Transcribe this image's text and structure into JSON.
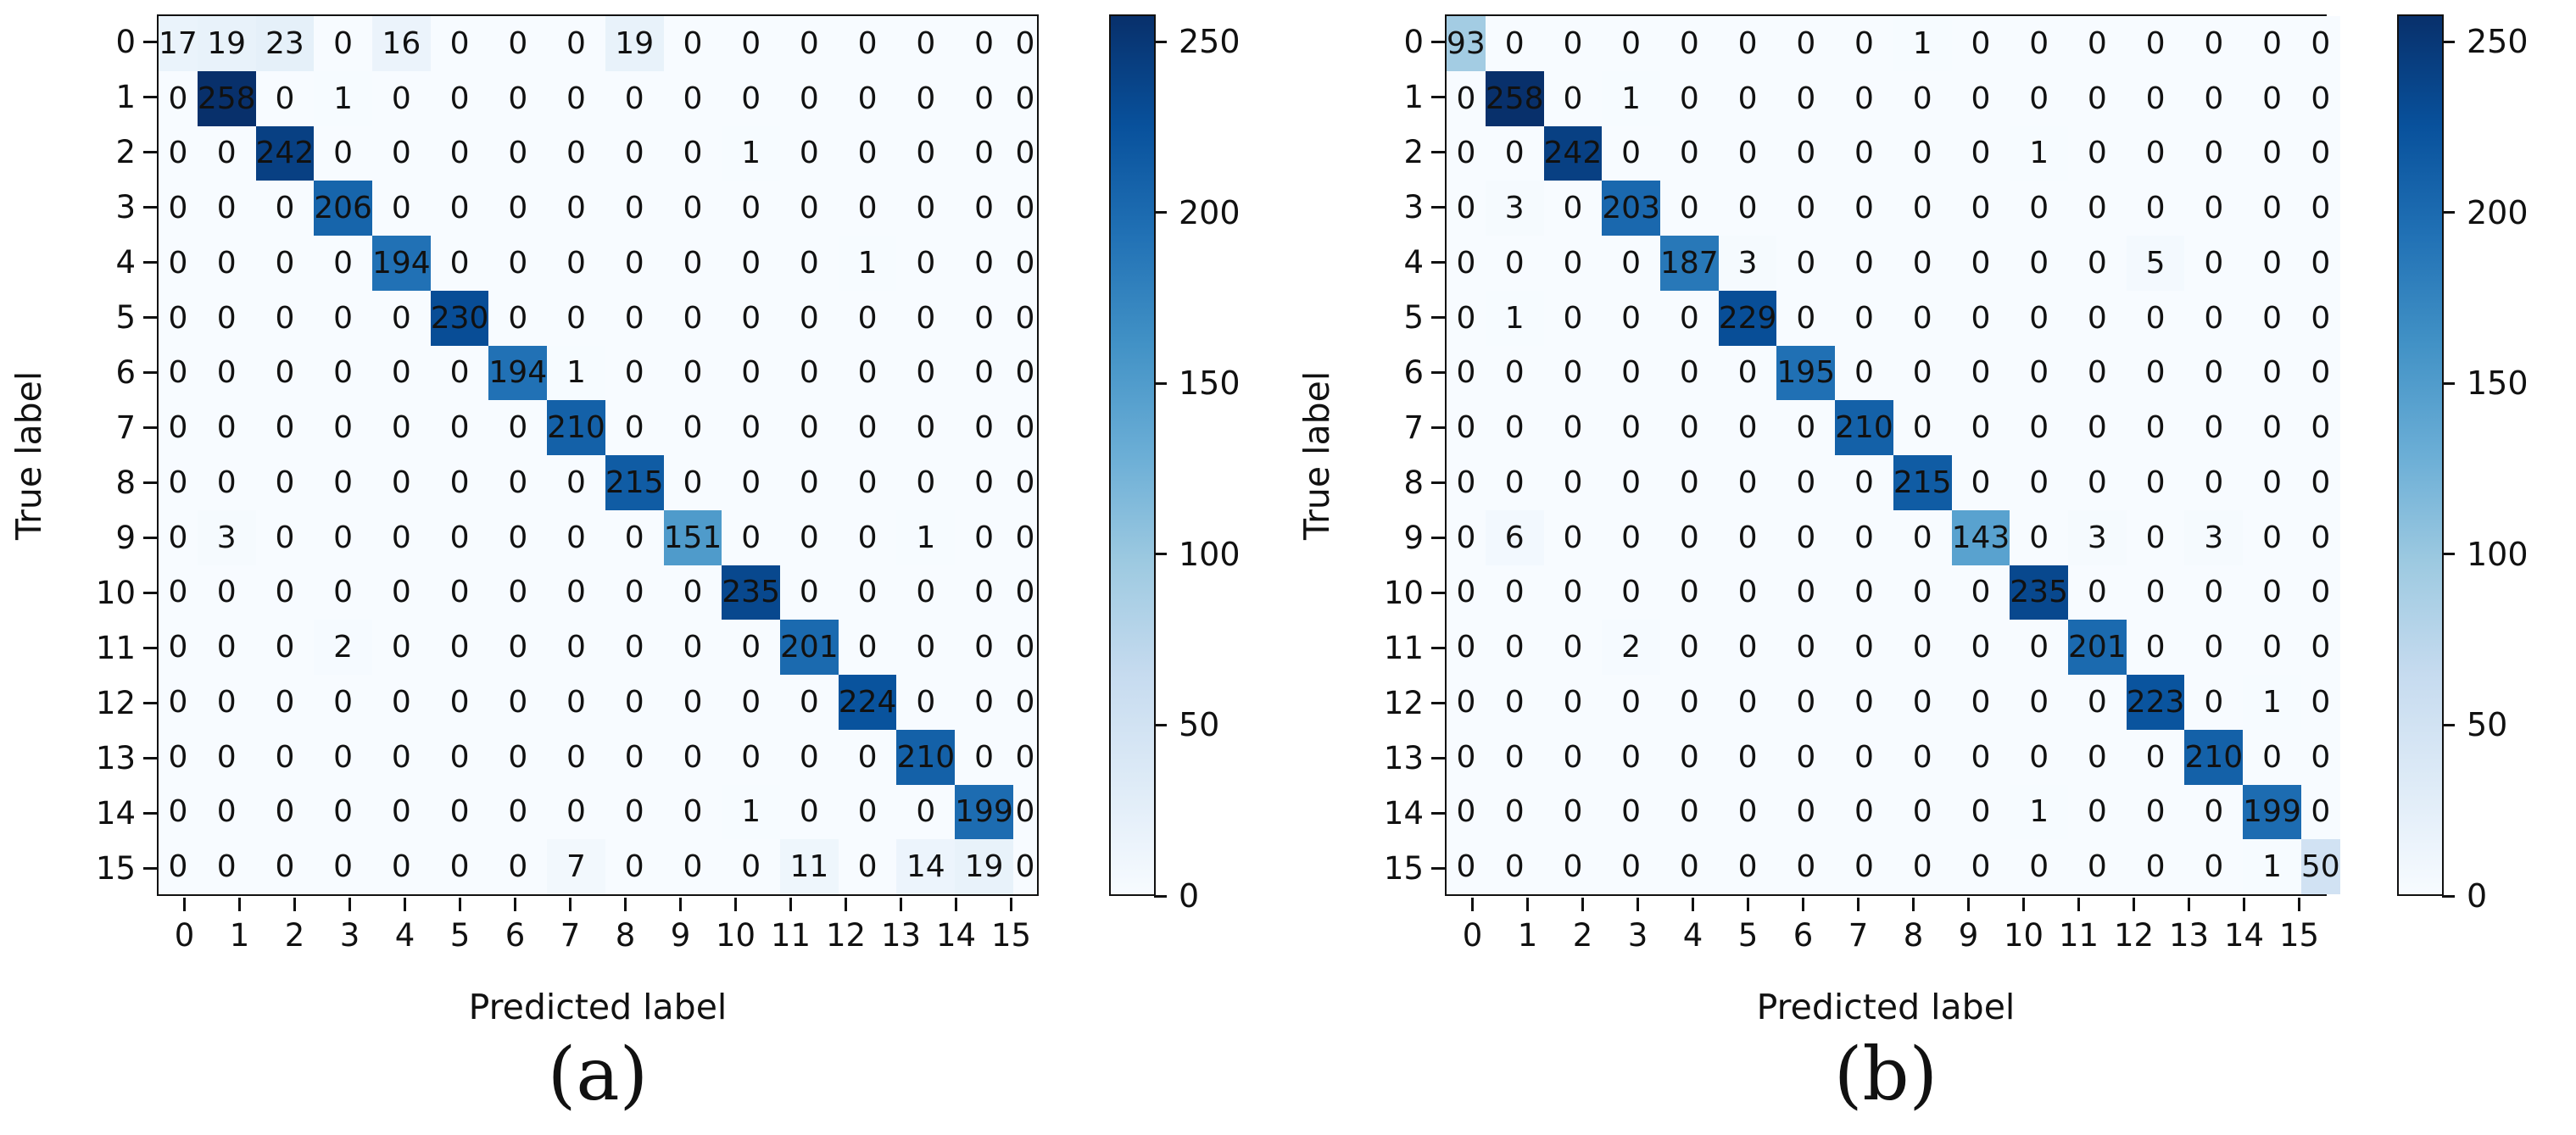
{
  "style": {
    "cmap_name": "Blues",
    "cmap_anchors": [
      [
        0,
        "#f7fbff"
      ],
      [
        0.125,
        "#deebf7"
      ],
      [
        0.25,
        "#c6dbef"
      ],
      [
        0.375,
        "#9ecae1"
      ],
      [
        0.5,
        "#6baed6"
      ],
      [
        0.625,
        "#4292c6"
      ],
      [
        0.75,
        "#2171b5"
      ],
      [
        0.875,
        "#08519c"
      ],
      [
        1,
        "#08306b"
      ]
    ],
    "text_color": "#111111",
    "spine_color": "#111111",
    "background": "#ffffff"
  },
  "chart_data": [
    {
      "type": "heatmap",
      "caption": "(a)",
      "xlabel": "Predicted label",
      "ylabel": "True label",
      "x_tick_labels": [
        "0",
        "1",
        "2",
        "3",
        "4",
        "5",
        "6",
        "7",
        "8",
        "9",
        "10",
        "11",
        "12",
        "13",
        "14",
        "15"
      ],
      "y_tick_labels": [
        "0",
        "1",
        "2",
        "3",
        "4",
        "5",
        "6",
        "7",
        "8",
        "9",
        "10",
        "11",
        "12",
        "13",
        "14",
        "15"
      ],
      "vmin": 0,
      "vmax": 258,
      "colorbar_ticks": [
        0,
        50,
        100,
        150,
        200,
        250
      ],
      "legend_position": "right",
      "values": [
        [
          17,
          19,
          23,
          0,
          16,
          0,
          0,
          0,
          19,
          0,
          0,
          0,
          0,
          0,
          0,
          0
        ],
        [
          0,
          258,
          0,
          1,
          0,
          0,
          0,
          0,
          0,
          0,
          0,
          0,
          0,
          0,
          0,
          0
        ],
        [
          0,
          0,
          242,
          0,
          0,
          0,
          0,
          0,
          0,
          0,
          1,
          0,
          0,
          0,
          0,
          0
        ],
        [
          0,
          0,
          0,
          206,
          0,
          0,
          0,
          0,
          0,
          0,
          0,
          0,
          0,
          0,
          0,
          0
        ],
        [
          0,
          0,
          0,
          0,
          194,
          0,
          0,
          0,
          0,
          0,
          0,
          0,
          1,
          0,
          0,
          0
        ],
        [
          0,
          0,
          0,
          0,
          0,
          230,
          0,
          0,
          0,
          0,
          0,
          0,
          0,
          0,
          0,
          0
        ],
        [
          0,
          0,
          0,
          0,
          0,
          0,
          194,
          1,
          0,
          0,
          0,
          0,
          0,
          0,
          0,
          0
        ],
        [
          0,
          0,
          0,
          0,
          0,
          0,
          0,
          210,
          0,
          0,
          0,
          0,
          0,
          0,
          0,
          0
        ],
        [
          0,
          0,
          0,
          0,
          0,
          0,
          0,
          0,
          215,
          0,
          0,
          0,
          0,
          0,
          0,
          0
        ],
        [
          0,
          3,
          0,
          0,
          0,
          0,
          0,
          0,
          0,
          151,
          0,
          0,
          0,
          1,
          0,
          0
        ],
        [
          0,
          0,
          0,
          0,
          0,
          0,
          0,
          0,
          0,
          0,
          235,
          0,
          0,
          0,
          0,
          0
        ],
        [
          0,
          0,
          0,
          2,
          0,
          0,
          0,
          0,
          0,
          0,
          0,
          201,
          0,
          0,
          0,
          0
        ],
        [
          0,
          0,
          0,
          0,
          0,
          0,
          0,
          0,
          0,
          0,
          0,
          0,
          224,
          0,
          0,
          0
        ],
        [
          0,
          0,
          0,
          0,
          0,
          0,
          0,
          0,
          0,
          0,
          0,
          0,
          0,
          210,
          0,
          0
        ],
        [
          0,
          0,
          0,
          0,
          0,
          0,
          0,
          0,
          0,
          0,
          1,
          0,
          0,
          0,
          199,
          0
        ],
        [
          0,
          0,
          0,
          0,
          0,
          0,
          0,
          7,
          0,
          0,
          0,
          11,
          0,
          14,
          19,
          0
        ]
      ]
    },
    {
      "type": "heatmap",
      "caption": "(b)",
      "xlabel": "Predicted label",
      "ylabel": "True label",
      "x_tick_labels": [
        "0",
        "1",
        "2",
        "3",
        "4",
        "5",
        "6",
        "7",
        "8",
        "9",
        "10",
        "11",
        "12",
        "13",
        "14",
        "15"
      ],
      "y_tick_labels": [
        "0",
        "1",
        "2",
        "3",
        "4",
        "5",
        "6",
        "7",
        "8",
        "9",
        "10",
        "11",
        "12",
        "13",
        "14",
        "15"
      ],
      "vmin": 0,
      "vmax": 258,
      "colorbar_ticks": [
        0,
        50,
        100,
        150,
        200,
        250
      ],
      "legend_position": "right",
      "values": [
        [
          93,
          0,
          0,
          0,
          0,
          0,
          0,
          0,
          1,
          0,
          0,
          0,
          0,
          0,
          0,
          0
        ],
        [
          0,
          258,
          0,
          1,
          0,
          0,
          0,
          0,
          0,
          0,
          0,
          0,
          0,
          0,
          0,
          0
        ],
        [
          0,
          0,
          242,
          0,
          0,
          0,
          0,
          0,
          0,
          0,
          1,
          0,
          0,
          0,
          0,
          0
        ],
        [
          0,
          3,
          0,
          203,
          0,
          0,
          0,
          0,
          0,
          0,
          0,
          0,
          0,
          0,
          0,
          0
        ],
        [
          0,
          0,
          0,
          0,
          187,
          3,
          0,
          0,
          0,
          0,
          0,
          0,
          5,
          0,
          0,
          0
        ],
        [
          0,
          1,
          0,
          0,
          0,
          229,
          0,
          0,
          0,
          0,
          0,
          0,
          0,
          0,
          0,
          0
        ],
        [
          0,
          0,
          0,
          0,
          0,
          0,
          195,
          0,
          0,
          0,
          0,
          0,
          0,
          0,
          0,
          0
        ],
        [
          0,
          0,
          0,
          0,
          0,
          0,
          0,
          210,
          0,
          0,
          0,
          0,
          0,
          0,
          0,
          0
        ],
        [
          0,
          0,
          0,
          0,
          0,
          0,
          0,
          0,
          215,
          0,
          0,
          0,
          0,
          0,
          0,
          0
        ],
        [
          0,
          6,
          0,
          0,
          0,
          0,
          0,
          0,
          0,
          143,
          0,
          3,
          0,
          3,
          0,
          0
        ],
        [
          0,
          0,
          0,
          0,
          0,
          0,
          0,
          0,
          0,
          0,
          235,
          0,
          0,
          0,
          0,
          0
        ],
        [
          0,
          0,
          0,
          2,
          0,
          0,
          0,
          0,
          0,
          0,
          0,
          201,
          0,
          0,
          0,
          0
        ],
        [
          0,
          0,
          0,
          0,
          0,
          0,
          0,
          0,
          0,
          0,
          0,
          0,
          223,
          0,
          1,
          0
        ],
        [
          0,
          0,
          0,
          0,
          0,
          0,
          0,
          0,
          0,
          0,
          0,
          0,
          0,
          210,
          0,
          0
        ],
        [
          0,
          0,
          0,
          0,
          0,
          0,
          0,
          0,
          0,
          0,
          1,
          0,
          0,
          0,
          199,
          0
        ],
        [
          0,
          0,
          0,
          0,
          0,
          0,
          0,
          0,
          0,
          0,
          0,
          0,
          0,
          0,
          1,
          50
        ]
      ]
    }
  ]
}
